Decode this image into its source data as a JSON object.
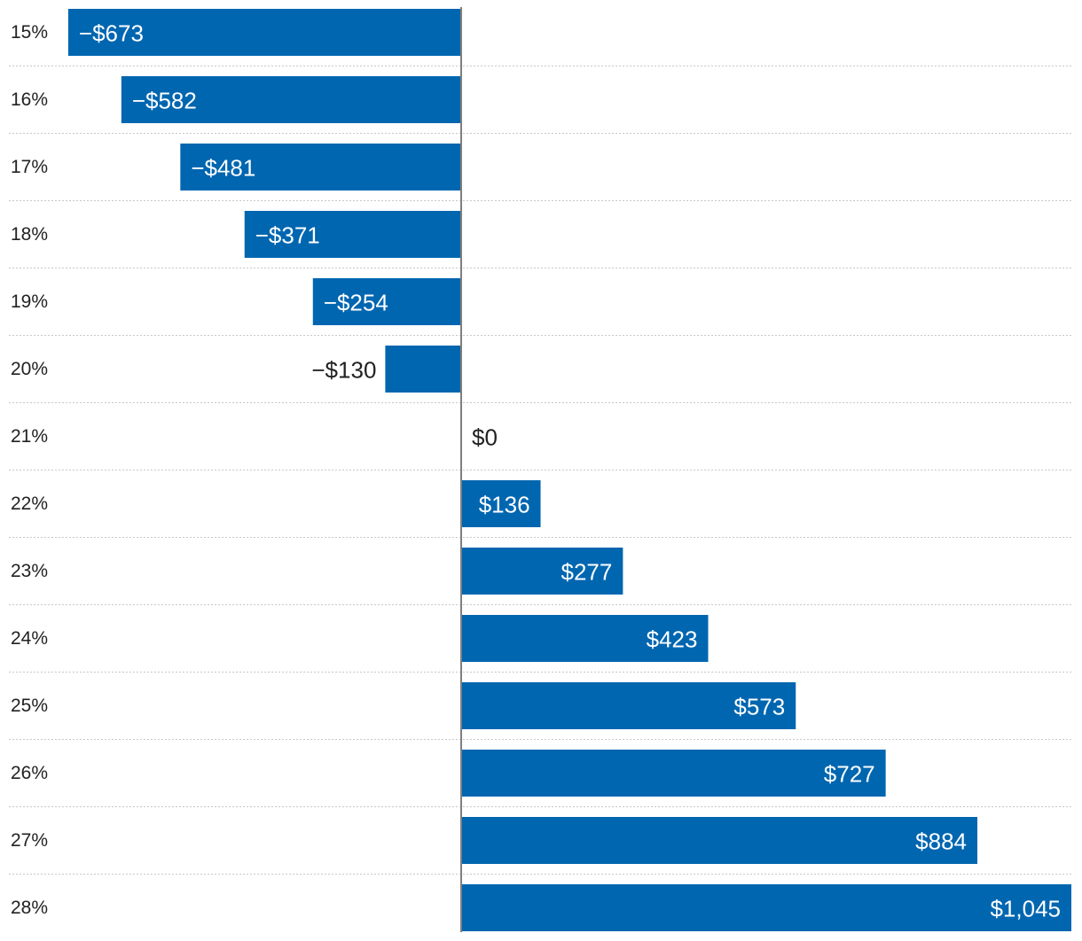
{
  "chart_data": {
    "type": "bar",
    "orientation": "horizontal",
    "categories": [
      "15%",
      "16%",
      "17%",
      "18%",
      "19%",
      "20%",
      "21%",
      "22%",
      "23%",
      "24%",
      "25%",
      "26%",
      "27%",
      "28%"
    ],
    "values": [
      -673,
      -582,
      -481,
      -371,
      -254,
      -130,
      0,
      136,
      277,
      423,
      573,
      727,
      884,
      1045
    ],
    "value_labels": [
      "−$673",
      "−$582",
      "−$481",
      "−$371",
      "−$254",
      "−$130",
      "$0",
      "$136",
      "$277",
      "$423",
      "$573",
      "$727",
      "$884",
      "$1,045"
    ],
    "title": "",
    "xlabel": "",
    "ylabel": "",
    "xlim": [
      -673,
      1045
    ],
    "grid": "dotted horizontal separators",
    "legend": "none"
  },
  "colors": {
    "bar": "#0066b0",
    "label_on_bar": "#ffffff",
    "label_outside": "#222222",
    "baseline": "#7f7f7f",
    "separator": "#c8c8c8"
  }
}
